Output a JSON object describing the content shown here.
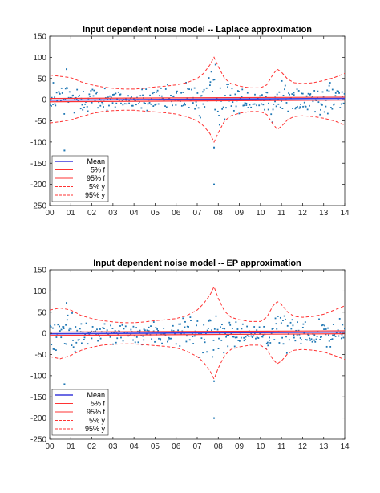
{
  "chart_data": [
    {
      "type": "scatter",
      "title": "Input dependent noise model -- Laplace approximation",
      "xlim": [
        0,
        14
      ],
      "ylim": [
        -250,
        150
      ],
      "x_ticks": [
        "00",
        "01",
        "02",
        "03",
        "04",
        "05",
        "06",
        "07",
        "08",
        "09",
        "10",
        "11",
        "12",
        "13",
        "14"
      ],
      "y_ticks": [
        150,
        100,
        50,
        0,
        -50,
        -100,
        -150,
        -200,
        -250
      ],
      "grid": false,
      "legend_position": "bottom-left",
      "legend": [
        "Mean",
        "5% f",
        "95% f",
        "5% y",
        "95% y"
      ],
      "colors": {
        "mean": "#3a3adc",
        "f": "#ff3333",
        "y": "#ff3333",
        "points": "#1f77b4"
      },
      "band_x": [
        0,
        0.5,
        1,
        1.5,
        2,
        2.5,
        3,
        3.5,
        4,
        4.5,
        5,
        5.5,
        6,
        6.5,
        7,
        7.3,
        7.6,
        7.8,
        8,
        8.3,
        8.6,
        9,
        9.5,
        10,
        10.3,
        10.6,
        10.8,
        11,
        11.3,
        11.6,
        12,
        12.5,
        13,
        13.5,
        14
      ],
      "y95_upper": [
        58,
        55,
        52,
        42,
        35,
        30,
        27,
        25,
        25,
        27,
        30,
        32,
        35,
        40,
        50,
        62,
        82,
        100,
        78,
        50,
        38,
        32,
        28,
        28,
        35,
        60,
        72,
        65,
        48,
        40,
        38,
        40,
        45,
        52,
        62
      ],
      "y5_lower": [
        -55,
        -52,
        -48,
        -40,
        -33,
        -28,
        -26,
        -25,
        -25,
        -27,
        -29,
        -31,
        -34,
        -40,
        -50,
        -62,
        -80,
        -100,
        -78,
        -50,
        -38,
        -32,
        -28,
        -28,
        -35,
        -58,
        -70,
        -63,
        -47,
        -40,
        -38,
        -40,
        -44,
        -50,
        -60
      ],
      "mean_x": [
        0,
        14
      ],
      "mean_y": [
        -1,
        3
      ],
      "f95_upper_y": [
        3,
        6
      ],
      "f5_lower_y": [
        -5,
        -1
      ],
      "outliers": [
        {
          "x": 7.8,
          "y": -200
        },
        {
          "x": 7.8,
          "y": -113
        },
        {
          "x": 0.7,
          "y": -120
        },
        {
          "x": 0.8,
          "y": 72
        }
      ]
    },
    {
      "type": "scatter",
      "title": "Input dependent noise model -- EP approximation",
      "xlim": [
        0,
        14
      ],
      "ylim": [
        -250,
        150
      ],
      "x_ticks": [
        "00",
        "01",
        "02",
        "03",
        "04",
        "05",
        "06",
        "07",
        "08",
        "09",
        "10",
        "11",
        "12",
        "13",
        "14"
      ],
      "y_ticks": [
        150,
        100,
        50,
        0,
        -50,
        -100,
        -150,
        -200,
        -250
      ],
      "grid": false,
      "legend_position": "bottom-left",
      "legend": [
        "Mean",
        "5% f",
        "95% f",
        "5% y",
        "95% y"
      ],
      "colors": {
        "mean": "#3a3adc",
        "f": "#ff3333",
        "y": "#ff3333",
        "points": "#1f77b4"
      },
      "band_x": [
        0,
        0.5,
        1,
        1.5,
        2,
        2.5,
        3,
        3.5,
        4,
        4.5,
        5,
        5.5,
        6,
        6.5,
        7,
        7.3,
        7.6,
        7.8,
        8,
        8.3,
        8.6,
        9,
        9.5,
        10,
        10.3,
        10.6,
        10.8,
        11,
        11.3,
        11.6,
        12,
        12.5,
        13,
        13.5,
        14
      ],
      "y95_upper": [
        55,
        60,
        55,
        42,
        35,
        30,
        27,
        25,
        25,
        27,
        30,
        32,
        35,
        42,
        55,
        70,
        90,
        110,
        82,
        52,
        38,
        32,
        28,
        28,
        38,
        65,
        75,
        68,
        50,
        40,
        38,
        40,
        45,
        55,
        65
      ],
      "y5_lower": [
        -55,
        -60,
        -52,
        -40,
        -33,
        -28,
        -26,
        -25,
        -25,
        -27,
        -29,
        -31,
        -34,
        -42,
        -55,
        -68,
        -88,
        -108,
        -82,
        -52,
        -38,
        -32,
        -28,
        -28,
        -38,
        -62,
        -72,
        -65,
        -48,
        -40,
        -38,
        -40,
        -44,
        -52,
        -62
      ],
      "mean_x": [
        0,
        14
      ],
      "mean_y": [
        -1,
        3
      ],
      "f95_upper_y": [
        3,
        6
      ],
      "f5_lower_y": [
        -5,
        -1
      ],
      "outliers": [
        {
          "x": 7.8,
          "y": -200
        },
        {
          "x": 7.8,
          "y": -113
        },
        {
          "x": 0.7,
          "y": -120
        },
        {
          "x": 0.8,
          "y": 72
        }
      ]
    }
  ]
}
